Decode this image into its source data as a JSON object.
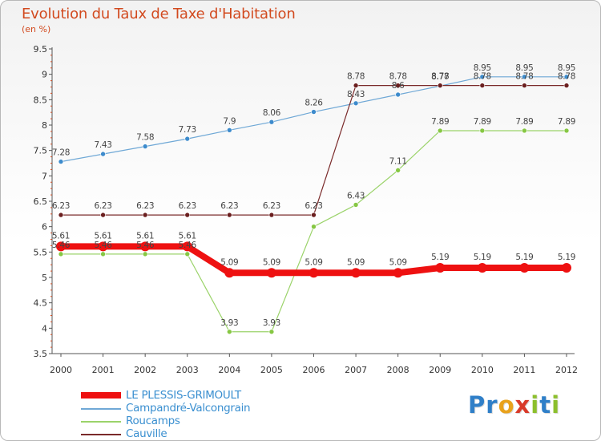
{
  "title": "Evolution du Taux de Taxe d'Habitation",
  "subtitle": "(en %)",
  "brand": {
    "letters": [
      {
        "ch": "P",
        "color": "#2f7fc8"
      },
      {
        "ch": "r",
        "color": "#2f7fc8"
      },
      {
        "ch": "o",
        "color": "#e9a21c"
      },
      {
        "ch": "x",
        "color": "#d93a2a"
      },
      {
        "ch": "i",
        "color": "#8cbf2c"
      },
      {
        "ch": "t",
        "color": "#2f7fc8"
      },
      {
        "ch": "i",
        "color": "#8cbf2c"
      }
    ]
  },
  "chart_data": {
    "type": "line",
    "title": "Evolution du Taux de Taxe d'Habitation",
    "ylabel": "(en %)",
    "xlabel": "",
    "x": [
      "2000",
      "2001",
      "2002",
      "2003",
      "2004",
      "2005",
      "2006",
      "2007",
      "2008",
      "2009",
      "2010",
      "2011",
      "2012"
    ],
    "ylim": [
      3.5,
      9.5
    ],
    "yticks": [
      3.5,
      4,
      4.5,
      5,
      5.5,
      6,
      6.5,
      7,
      7.5,
      8,
      8.5,
      9,
      9.5
    ],
    "ytick_labels": [
      "3.5",
      "4",
      "4.5",
      "5",
      "5.5",
      "6",
      "6.5",
      "7",
      "7.5",
      "8",
      "8.5",
      "9",
      "9.5"
    ],
    "series": [
      {
        "name": "Campandré-Valcongrain",
        "color": "#6fa8d6",
        "marker": "#3d8bcc",
        "width": 1.2,
        "highlight": false,
        "values": [
          7.28,
          7.43,
          7.58,
          7.73,
          7.9,
          8.06,
          8.26,
          8.43,
          8.6,
          8.77,
          8.95,
          8.95,
          8.95
        ],
        "labels": [
          "7.28",
          "7.43",
          "7.58",
          "7.73",
          "7.9",
          "8.06",
          "8.26",
          "8.43",
          "8.6",
          "8.77",
          "8.95",
          "8.95",
          "8.95"
        ]
      },
      {
        "name": "Roucamps",
        "color": "#9bd36a",
        "marker": "#86c743",
        "width": 1.2,
        "highlight": false,
        "values": [
          5.46,
          5.46,
          5.46,
          5.46,
          3.93,
          3.93,
          6.0,
          6.43,
          7.11,
          7.89,
          7.89,
          7.89,
          7.89
        ],
        "labels": [
          "5.46",
          "5.46",
          "5.46",
          "5.46",
          "3.93",
          "3.93",
          "",
          "6.43",
          "7.11",
          "7.89",
          "7.89",
          "7.89",
          "7.89"
        ]
      },
      {
        "name": "Cauville",
        "color": "#7a2a2a",
        "marker": "#6b1f1f",
        "width": 1.2,
        "highlight": false,
        "values": [
          6.23,
          6.23,
          6.23,
          6.23,
          6.23,
          6.23,
          6.23,
          8.78,
          8.78,
          8.78,
          8.78,
          8.78,
          8.78
        ],
        "labels": [
          "6.23",
          "6.23",
          "6.23",
          "6.23",
          "6.23",
          "6.23",
          "6.23",
          "8.78",
          "8.78",
          "8.78",
          "8.78",
          "8.78",
          "8.78"
        ]
      },
      {
        "name": "LE PLESSIS-GRIMOULT",
        "color": "#ee1111",
        "marker": "#ee1111",
        "width": 8,
        "highlight": true,
        "values": [
          5.61,
          5.61,
          5.61,
          5.61,
          5.09,
          5.09,
          5.09,
          5.09,
          5.09,
          5.19,
          5.19,
          5.19,
          5.19
        ],
        "labels": [
          "5.61",
          "5.61",
          "5.61",
          "5.61",
          "5.09",
          "5.09",
          "5.09",
          "5.09",
          "5.09",
          "5.19",
          "5.19",
          "5.19",
          "5.19"
        ]
      }
    ],
    "legend": [
      {
        "name": "LE PLESSIS-GRIMOULT",
        "color": "#ee1111",
        "thick": true
      },
      {
        "name": "Campandré-Valcongrain",
        "color": "#6fa8d6",
        "thick": false
      },
      {
        "name": "Roucamps",
        "color": "#9bd36a",
        "thick": false
      },
      {
        "name": "Cauville",
        "color": "#7a2a2a",
        "thick": false
      }
    ],
    "legend_position": "bottom-left",
    "grid": false
  }
}
